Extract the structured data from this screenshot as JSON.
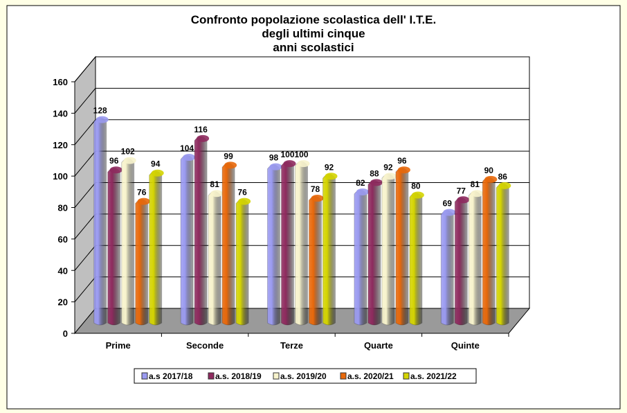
{
  "chart_data": {
    "type": "bar",
    "title_lines": [
      "Confronto popolazione scolastica dell' I.T.E.",
      "degli ultimi cinque",
      "anni scolastici"
    ],
    "categories": [
      "Prime",
      "Seconde",
      "Terze",
      "Quarte",
      "Quinte"
    ],
    "series": [
      {
        "name": "a.s  2017/18",
        "color": "#9a9af0",
        "values": [
          128,
          104,
          98,
          82,
          69
        ]
      },
      {
        "name": "a.s. 2018/19",
        "color": "#8e2a5e",
        "values": [
          96,
          116,
          100,
          88,
          77
        ]
      },
      {
        "name": "a.s. 2019/20",
        "color": "#f7f3cc",
        "values": [
          102,
          81,
          100,
          92,
          81
        ]
      },
      {
        "name": "a.s. 2020/21",
        "color": "#e8680a",
        "values": [
          76,
          99,
          78,
          96,
          90
        ]
      },
      {
        "name": "a.s. 2021/22",
        "color": "#d4d400",
        "values": [
          94,
          76,
          92,
          80,
          86
        ]
      }
    ],
    "ylim": [
      0,
      160
    ],
    "yticks": [
      0,
      20,
      40,
      60,
      80,
      100,
      120,
      140,
      160
    ],
    "grid": true,
    "three_d": true,
    "legend_position": "bottom",
    "data_labels": true
  }
}
